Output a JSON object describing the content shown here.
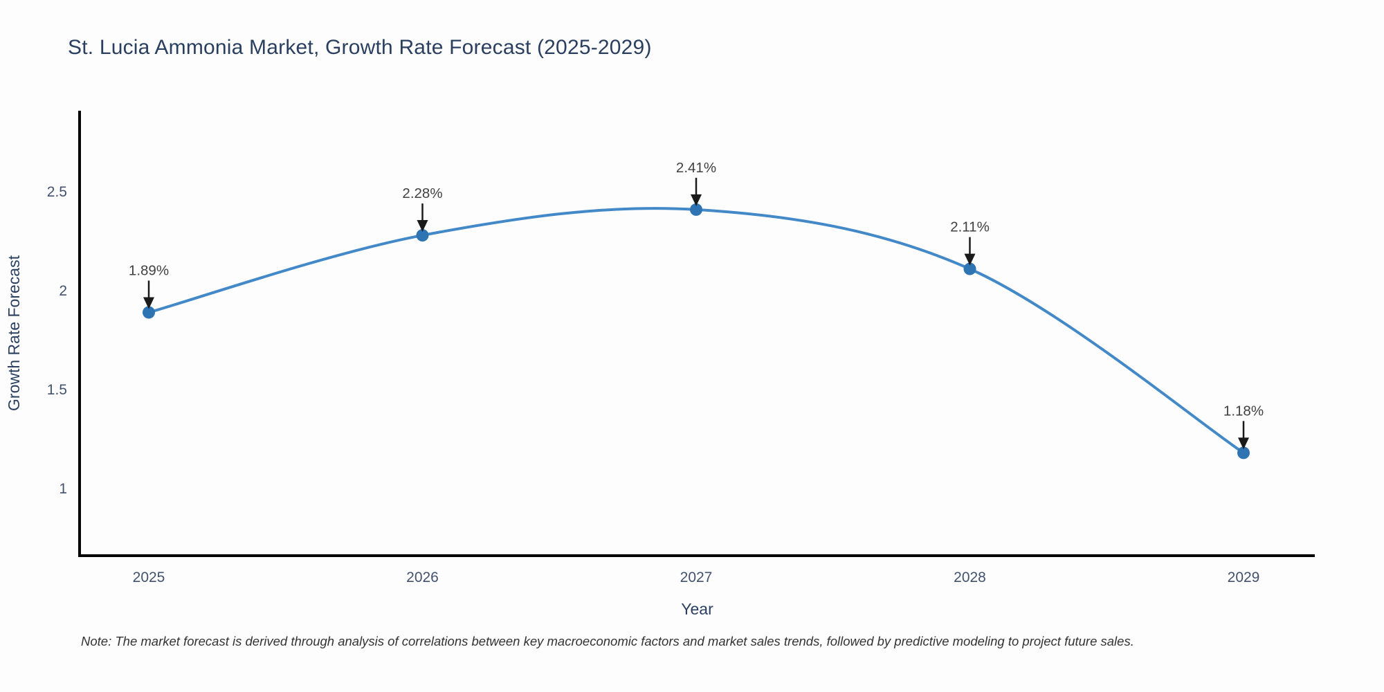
{
  "note": "Note: The market forecast is derived through analysis of correlations between key macroeconomic factors and market sales trends, followed by predictive modeling to project future sales.",
  "chart_data": {
    "type": "line",
    "title": "St. Lucia Ammonia Market, Growth Rate Forecast (2025-2029)",
    "xlabel": "Year",
    "ylabel": "Growth Rate Forecast",
    "categories": [
      "2025",
      "2026",
      "2027",
      "2028",
      "2029"
    ],
    "values": [
      1.89,
      2.28,
      2.41,
      2.11,
      1.18
    ],
    "point_labels": [
      "1.89%",
      "2.28%",
      "2.41%",
      "2.11%",
      "1.18%"
    ],
    "yticks": [
      1,
      1.5,
      2,
      2.5
    ],
    "ylim": [
      0.66,
      2.91
    ],
    "line_shape": "spline",
    "grid": false,
    "legend_position": "none",
    "colors": {
      "line": "#4389c8",
      "marker": "#2e73b2",
      "axis_line": "#000000",
      "axis_title_text": "#2a3f5f",
      "tick_text": "#42526e",
      "annotation_text": "#404040",
      "arrow": "#1a1a1a"
    }
  }
}
